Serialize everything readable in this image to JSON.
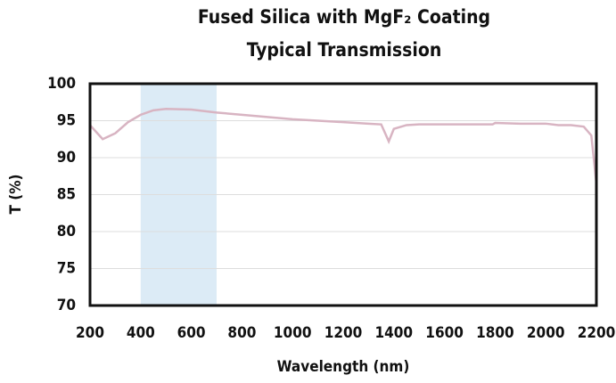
{
  "chart_data": {
    "type": "line",
    "title": "Fused Silica with MgF₂ Coating",
    "subtitle": "Typical Transmission",
    "x_label": "Wavelength (nm)",
    "y_label": "T (%)",
    "x": [
      200,
      250,
      300,
      350,
      400,
      450,
      500,
      600,
      700,
      800,
      900,
      1000,
      1100,
      1200,
      1300,
      1350,
      1380,
      1400,
      1450,
      1500,
      1600,
      1700,
      1790,
      1800,
      1900,
      2000,
      2050,
      2100,
      2150,
      2180,
      2200
    ],
    "values": [
      94.4,
      92.5,
      93.3,
      94.8,
      95.8,
      96.4,
      96.6,
      96.5,
      96.1,
      95.8,
      95.5,
      95.2,
      95.0,
      94.8,
      94.6,
      94.5,
      92.2,
      93.9,
      94.4,
      94.5,
      94.5,
      94.5,
      94.5,
      94.7,
      94.6,
      94.6,
      94.4,
      94.4,
      94.2,
      93.0,
      86.5
    ],
    "color": "#d8b4c2",
    "shaded_range": [
      400,
      700
    ],
    "shaded_color": "#dcebf6",
    "xlim": [
      200,
      2200
    ],
    "xticks": [
      200,
      400,
      600,
      800,
      1000,
      1200,
      1400,
      1600,
      1800,
      2000,
      2200
    ],
    "ylim": [
      70,
      100
    ],
    "yticks": [
      70,
      75,
      80,
      85,
      90,
      95,
      100
    ],
    "grid": true
  }
}
